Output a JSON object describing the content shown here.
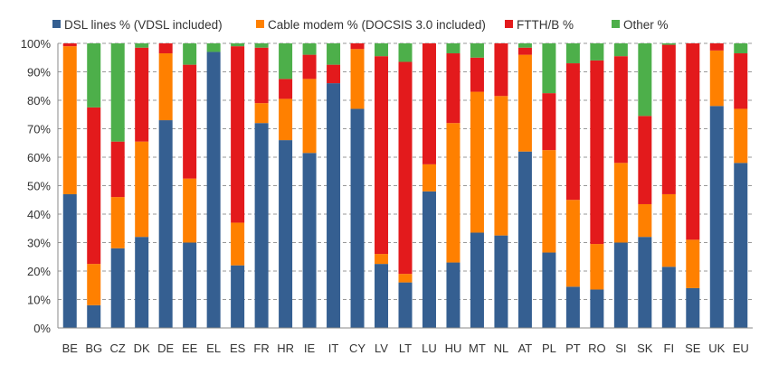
{
  "chart_data": {
    "type": "bar",
    "stacked": true,
    "title": "",
    "xlabel": "",
    "ylabel": "",
    "ylim": [
      0,
      100
    ],
    "yticks": [
      "0%",
      "10%",
      "20%",
      "30%",
      "40%",
      "50%",
      "60%",
      "70%",
      "80%",
      "90%",
      "100%"
    ],
    "grid": true,
    "legend_position": "top",
    "categories": [
      "BE",
      "BG",
      "CZ",
      "DK",
      "DE",
      "EE",
      "EL",
      "ES",
      "FR",
      "HR",
      "IE",
      "IT",
      "CY",
      "LV",
      "LT",
      "LU",
      "HU",
      "MT",
      "NL",
      "AT",
      "PL",
      "PT",
      "RO",
      "SI",
      "SK",
      "FI",
      "SE",
      "UK",
      "EU"
    ],
    "series": [
      {
        "name": "DSL lines % (VDSL included)",
        "color": "#355f91",
        "values": [
          47,
          8,
          28,
          32,
          73,
          30,
          97,
          22,
          72,
          66,
          61.5,
          86,
          77,
          22.5,
          16,
          48,
          23,
          33.5,
          32.5,
          62,
          26.5,
          14.5,
          13.5,
          30,
          32,
          21.5,
          14,
          78,
          58
        ]
      },
      {
        "name": "Cable modem % (DOCSIS 3.0 included)",
        "color": "#ff8000",
        "values": [
          52,
          14.5,
          18,
          33.5,
          23.5,
          22.5,
          0,
          15,
          7,
          14.5,
          26,
          0,
          21,
          3.5,
          3,
          9.5,
          49,
          49.5,
          49,
          34,
          36,
          30.5,
          16,
          28,
          11.5,
          25.5,
          17,
          19.5,
          19
        ]
      },
      {
        "name": "FTTH/B %",
        "color": "#e31a1c",
        "values": [
          1,
          55,
          19.5,
          33,
          3.5,
          40,
          0,
          62,
          19.5,
          7,
          8.5,
          6.5,
          2,
          69.5,
          74.5,
          42.5,
          24.5,
          12,
          18.5,
          2.5,
          20,
          48,
          64.5,
          37.5,
          31,
          52.5,
          69,
          2.5,
          19.5
        ]
      },
      {
        "name": "Other %",
        "color": "#4daf4a",
        "values": [
          0,
          22.5,
          34.5,
          1.5,
          0,
          7.5,
          3,
          1,
          1.5,
          12.5,
          4,
          7.5,
          0,
          4.5,
          6.5,
          0,
          3.5,
          5,
          0,
          1.5,
          17.5,
          7,
          6,
          4.5,
          25.5,
          0.5,
          0,
          0,
          3.5
        ]
      }
    ]
  }
}
